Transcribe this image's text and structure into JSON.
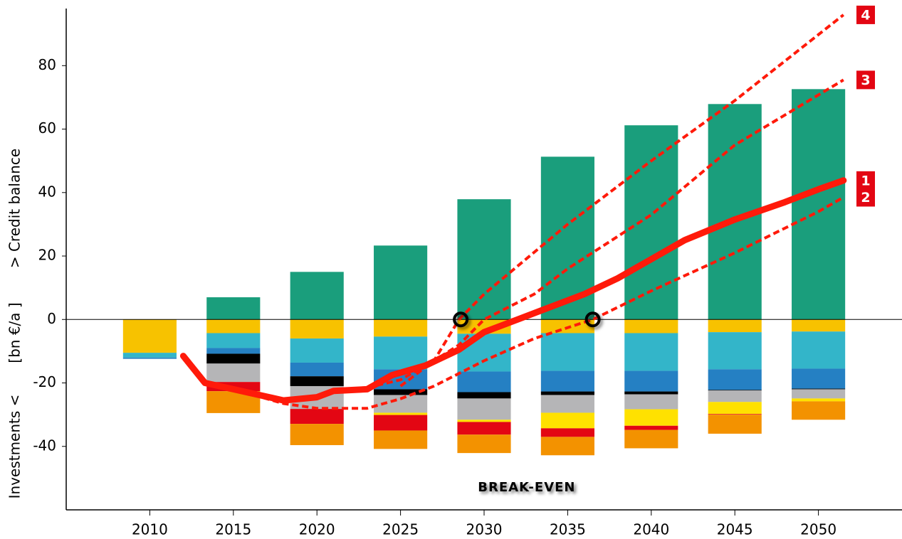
{
  "chart_data": {
    "type": "bar",
    "stacked": true,
    "ylabel": "Investments <",
    "ylabel_unit": "[bn €/a ]",
    "ylabel_top": "> Credit balance",
    "annotation": "BREAK-EVEN",
    "break_even": [
      2028.6,
      2036.5
    ],
    "x": [
      2010,
      2015,
      2020,
      2025,
      2030,
      2035,
      2040,
      2045,
      2050
    ],
    "xlim": [
      2005,
      2055
    ],
    "xticks": [
      2010,
      2015,
      2020,
      2025,
      2030,
      2035,
      2040,
      2045,
      2050
    ],
    "ylim": [
      -60,
      98
    ],
    "yticks": [
      -40,
      -20,
      0,
      20,
      40,
      60,
      80
    ],
    "series": [
      {
        "color": "#1a9e7c",
        "values": [
          0,
          7,
          15,
          23.3,
          37.9,
          51.3,
          61.2,
          67.9,
          72.6
        ]
      },
      {
        "color": "#f7c200",
        "values": [
          -10.5,
          -4.3,
          -6,
          -5.4,
          -4.5,
          -4.3,
          -4.3,
          -4,
          -3.8
        ]
      },
      {
        "color": "#33b5c9",
        "values": [
          -1.5,
          -4.7,
          -7.6,
          -10.3,
          -11.9,
          -11.9,
          -11.9,
          -11.7,
          -11.7
        ]
      },
      {
        "color": "#2580c3",
        "values": [
          -0.4,
          -1.8,
          -4.3,
          -6.3,
          -6.5,
          -6.5,
          -6.5,
          -6.5,
          -6.3
        ]
      },
      {
        "color": "#000000",
        "values": [
          0,
          -3.1,
          -3.1,
          -1.8,
          -2,
          -1.1,
          -0.9,
          -0.2,
          -0.2
        ]
      },
      {
        "color": "#b5b5b7",
        "values": [
          0,
          -5.8,
          -7.2,
          -5.6,
          -6.7,
          -5.6,
          -4.7,
          -3.6,
          -2.9
        ]
      },
      {
        "color": "#ffe100",
        "values": [
          0,
          0,
          0,
          -0.7,
          -0.7,
          -4.9,
          -5.2,
          -3.8,
          -0.9
        ]
      },
      {
        "color": "#e30613",
        "values": [
          0,
          -2.9,
          -4.7,
          -4.9,
          -4,
          -2.7,
          -1.3,
          -0.2,
          0
        ]
      },
      {
        "color": "#f39200",
        "values": [
          0,
          -6.9,
          -6.7,
          -5.8,
          -5.8,
          -5.8,
          -5.8,
          -6,
          -5.8
        ]
      }
    ],
    "lines": [
      {
        "label": "1",
        "color": "#ff1a0a",
        "dashed": false,
        "x": [
          2012,
          2013.3,
          2015,
          2018,
          2020,
          2021,
          2023,
          2024.5,
          2026.5,
          2028.5,
          2030,
          2032,
          2034,
          2036,
          2038,
          2040,
          2042,
          2045,
          2048,
          2050,
          2051.5
        ],
        "values": [
          -11.5,
          -20,
          -22,
          -25.5,
          -24.5,
          -22.5,
          -22,
          -17.5,
          -14.5,
          -9.5,
          -4,
          0,
          4,
          8,
          13,
          19,
          25,
          31.5,
          37,
          41,
          43.8
        ]
      },
      {
        "label": "2",
        "color": "#ff1a0a",
        "dashed": true,
        "x": [
          2013.3,
          2015,
          2018,
          2020,
          2023,
          2025,
          2027,
          2030,
          2033,
          2036.5,
          2040,
          2045,
          2050,
          2051.5
        ],
        "values": [
          -20.5,
          -22,
          -26.5,
          -28,
          -28,
          -25,
          -21,
          -13,
          -6,
          0,
          9,
          21,
          34,
          38.5
        ]
      },
      {
        "label": "3",
        "color": "#ff1a0a",
        "dashed": true,
        "x": [
          2023,
          2025,
          2027,
          2028.5,
          2030,
          2033,
          2035,
          2040,
          2045,
          2051.5
        ],
        "values": [
          -21.5,
          -19,
          -13,
          -8,
          0,
          8,
          16,
          33,
          55,
          75.5
        ]
      },
      {
        "label": "4",
        "color": "#ff1a0a",
        "dashed": true,
        "x": [
          2025,
          2027,
          2028.5,
          2030,
          2035,
          2040,
          2045,
          2051.5
        ],
        "values": [
          -21,
          -13,
          0,
          8,
          30,
          50,
          69,
          96
        ]
      }
    ]
  }
}
